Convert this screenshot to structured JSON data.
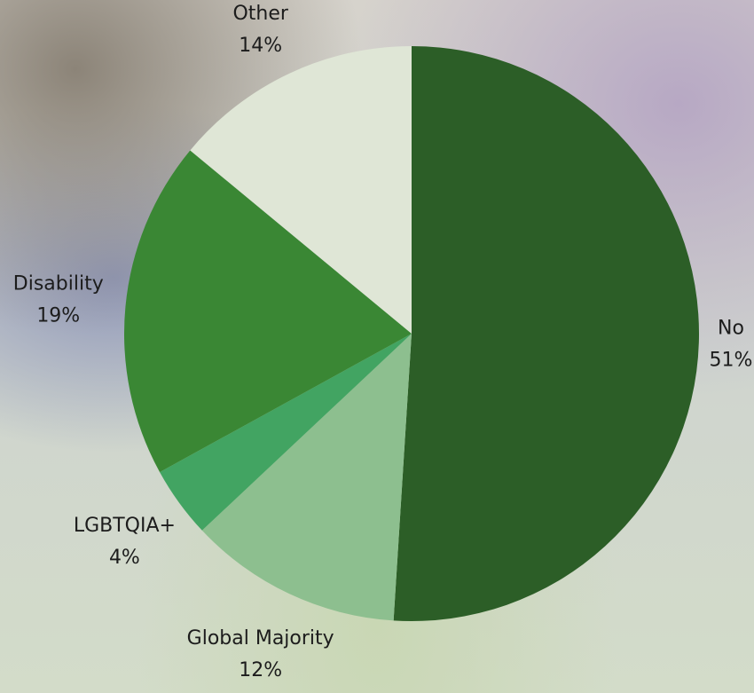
{
  "chart_data": {
    "type": "pie",
    "categories": [
      "No",
      "Global Majority",
      "LGBTQIA+",
      "Disability",
      "Other"
    ],
    "values": [
      51,
      12,
      4,
      19,
      14
    ],
    "value_labels": [
      "51%",
      "12%",
      "4%",
      "19%",
      "14%"
    ],
    "colors": [
      "#2c5e27",
      "#8dbf8f",
      "#42a462",
      "#3a8734",
      "#dfe6d6"
    ]
  }
}
